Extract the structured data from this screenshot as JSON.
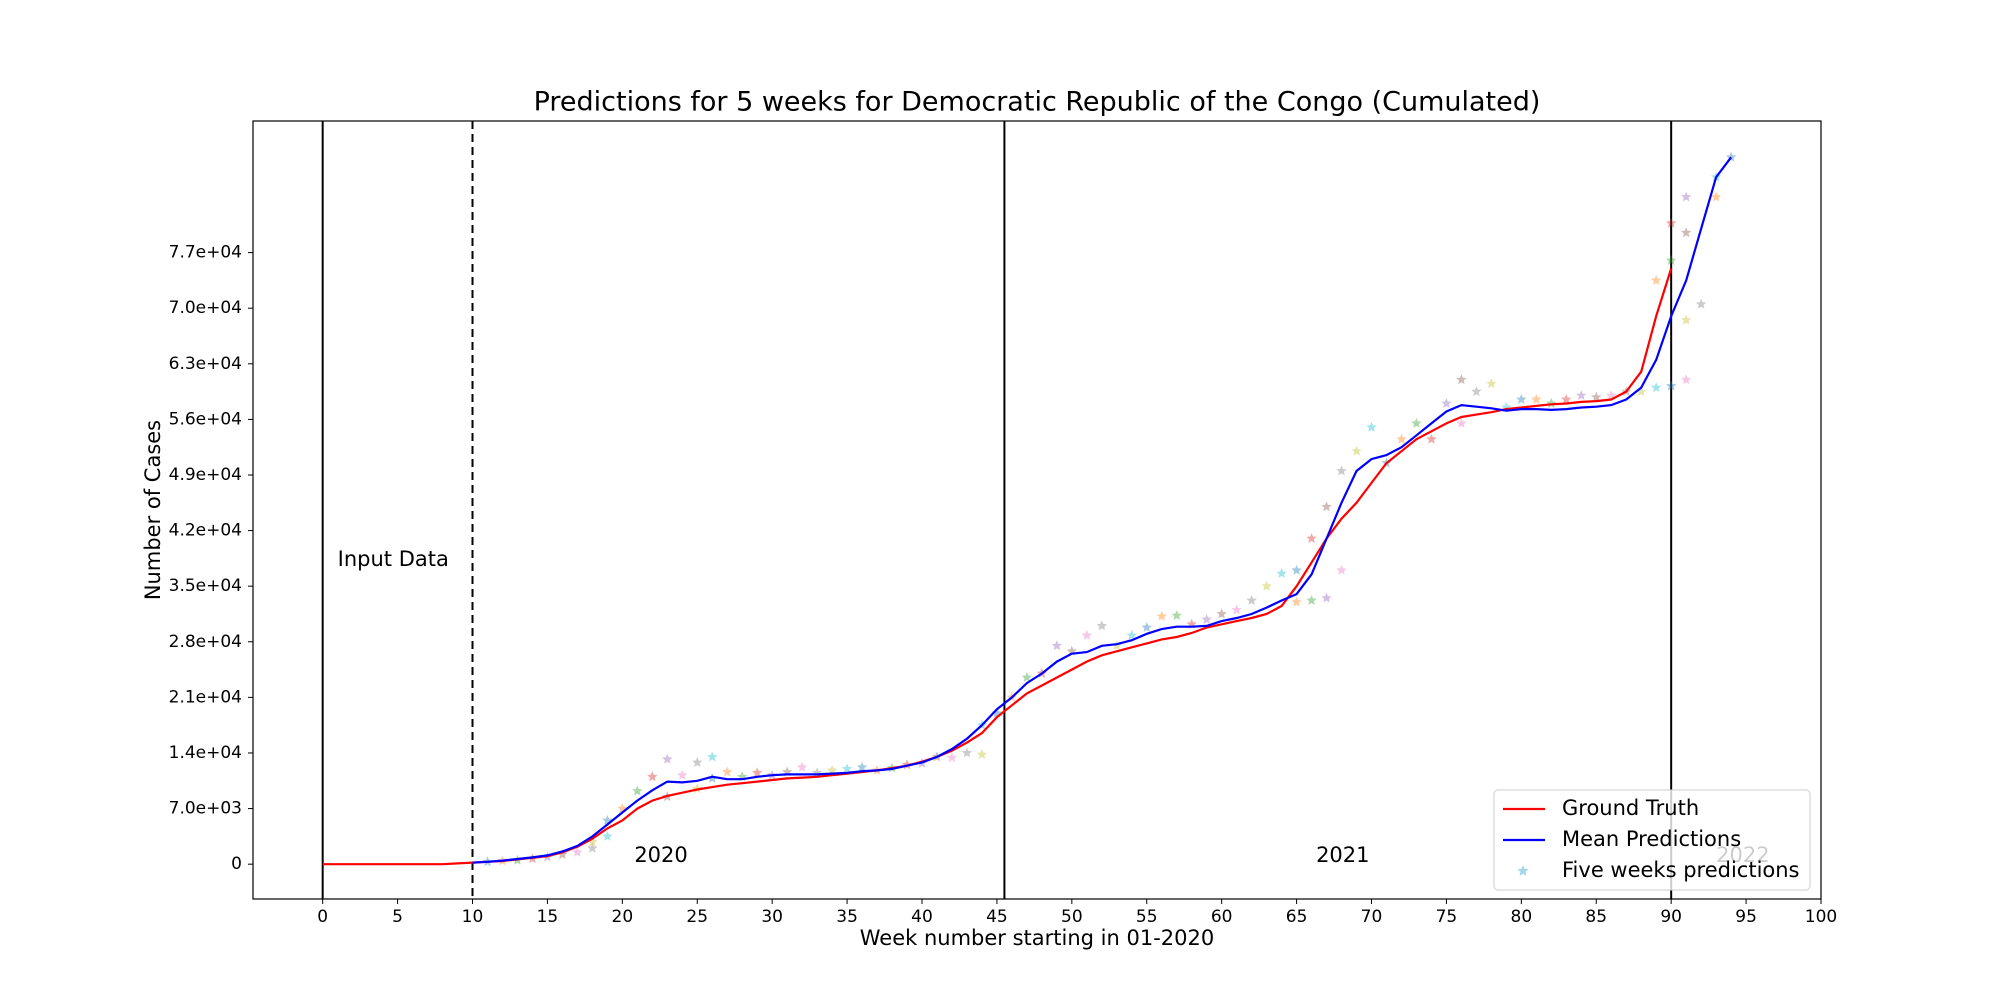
{
  "chart_data": {
    "type": "line",
    "title": "Predictions for 5 weeks for Democratic Republic of the Congo (Cumulated)",
    "x_label": "Week number starting in 01-2020",
    "y_label": "Number of Cases",
    "xlim": [
      -4.65,
      100
    ],
    "ylim": [
      -4386,
      93570
    ],
    "xticks": [
      0,
      5,
      10,
      15,
      20,
      25,
      30,
      35,
      40,
      45,
      50,
      55,
      60,
      65,
      70,
      75,
      80,
      85,
      90,
      95,
      100
    ],
    "yticks": [
      0,
      {
        "value": 7000,
        "label": "7.0e+03"
      },
      {
        "value": 14000,
        "label": "1.4e+04"
      },
      {
        "value": 21000,
        "label": "2.1e+04"
      },
      {
        "value": 28000,
        "label": "2.8e+04"
      },
      {
        "value": 35000,
        "label": "3.5e+04"
      },
      {
        "value": 42000,
        "label": "4.2e+04"
      },
      {
        "value": 49000,
        "label": "4.9e+04"
      },
      {
        "value": 56000,
        "label": "5.6e+04"
      },
      {
        "value": 63000,
        "label": "6.3e+04"
      },
      {
        "value": 70000,
        "label": "7.0e+04"
      },
      {
        "value": 77000,
        "label": "7.7e+04"
      }
    ],
    "legend": "lower right",
    "vlines": [
      {
        "x": 0,
        "style": "solid"
      },
      {
        "x": 10,
        "style": "dashed"
      },
      {
        "x": 45.5,
        "style": "solid"
      },
      {
        "x": 90,
        "style": "solid"
      }
    ],
    "annotations": [
      {
        "text": "Input Data",
        "x": 1,
        "y": 38300,
        "color": "#000000"
      },
      {
        "text": "2020",
        "x": 20.8,
        "y": 1000,
        "color": "#000000"
      },
      {
        "text": "2021",
        "x": 66.3,
        "y": 1000,
        "color": "#000000"
      },
      {
        "text": "2022",
        "x": 93,
        "y": 1000,
        "color": "#c8c8c8"
      }
    ],
    "series": [
      {
        "name": "Ground Truth",
        "color": "#ff0000",
        "kind": "line",
        "x": [
          0,
          1,
          2,
          3,
          4,
          5,
          6,
          7,
          8,
          9,
          10,
          11,
          12,
          13,
          14,
          15,
          16,
          17,
          18,
          19,
          20,
          21,
          22,
          23,
          24,
          25,
          26,
          27,
          28,
          29,
          30,
          31,
          32,
          33,
          34,
          35,
          36,
          37,
          38,
          39,
          40,
          41,
          42,
          43,
          44,
          45,
          46,
          47,
          48,
          49,
          50,
          51,
          52,
          53,
          54,
          55,
          56,
          57,
          58,
          59,
          60,
          61,
          62,
          63,
          64,
          65,
          66,
          67,
          68,
          69,
          70,
          71,
          72,
          73,
          74,
          75,
          76,
          77,
          78,
          79,
          80,
          81,
          82,
          83,
          84,
          85,
          86,
          87,
          88,
          89,
          90
        ],
        "values": [
          0,
          0,
          0,
          0,
          0,
          0,
          0,
          0,
          0,
          100,
          200,
          300,
          400,
          600,
          800,
          1000,
          1500,
          2200,
          3200,
          4500,
          5500,
          7000,
          8000,
          8600,
          9000,
          9400,
          9700,
          10000,
          10200,
          10400,
          10600,
          10800,
          10900,
          11000,
          11200,
          11400,
          11600,
          11800,
          12100,
          12400,
          12900,
          13500,
          14300,
          15300,
          16500,
          18500,
          20000,
          21500,
          22500,
          23500,
          24500,
          25500,
          26300,
          26800,
          27300,
          27800,
          28300,
          28600,
          29100,
          29800,
          30200,
          30600,
          31000,
          31500,
          32500,
          35000,
          38000,
          41000,
          43500,
          45500,
          48000,
          50500,
          52000,
          53500,
          54500,
          55500,
          56300,
          56600,
          56900,
          57300,
          57500,
          57700,
          57900,
          58000,
          58200,
          58300,
          58500,
          59500,
          62000,
          69000,
          75000
        ]
      },
      {
        "name": "Mean Predictions",
        "color": "#0000ff",
        "kind": "line",
        "x": [
          10,
          11,
          12,
          13,
          14,
          15,
          16,
          17,
          18,
          19,
          20,
          21,
          22,
          23,
          24,
          25,
          26,
          27,
          28,
          29,
          30,
          31,
          32,
          33,
          34,
          35,
          36,
          37,
          38,
          39,
          40,
          41,
          42,
          43,
          44,
          45,
          46,
          47,
          48,
          49,
          50,
          51,
          52,
          53,
          54,
          55,
          56,
          57,
          58,
          59,
          60,
          61,
          62,
          63,
          64,
          65,
          66,
          67,
          68,
          69,
          70,
          71,
          72,
          73,
          74,
          75,
          76,
          77,
          78,
          79,
          80,
          81,
          82,
          83,
          84,
          85,
          86,
          87,
          88,
          89,
          90,
          91,
          92,
          93,
          94
        ],
        "values": [
          200,
          300,
          450,
          650,
          850,
          1100,
          1600,
          2300,
          3500,
          5000,
          6500,
          8000,
          9300,
          10400,
          10300,
          10500,
          11000,
          10700,
          10700,
          11000,
          11200,
          11300,
          11300,
          11300,
          11400,
          11500,
          11700,
          11800,
          12000,
          12400,
          12800,
          13500,
          14500,
          15800,
          17500,
          19500,
          21000,
          22800,
          24000,
          25500,
          26500,
          26700,
          27500,
          27700,
          28200,
          29000,
          29600,
          29900,
          29900,
          30000,
          30600,
          31000,
          31500,
          32300,
          33200,
          34000,
          36500,
          41000,
          45500,
          49500,
          51000,
          51500,
          52500,
          54000,
          55500,
          57000,
          57800,
          57600,
          57400,
          57100,
          57300,
          57300,
          57200,
          57300,
          57500,
          57600,
          57800,
          58500,
          60000,
          63500,
          69000,
          73500,
          80000,
          86500,
          89000
        ]
      },
      {
        "name": "Five weeks predictions",
        "color": "#7fc6e0",
        "kind": "scatter",
        "palette": [
          "#1f77b4",
          "#ff7f0e",
          "#2ca02c",
          "#d62728",
          "#9467bd",
          "#8c564b",
          "#e377c2",
          "#7f7f7f",
          "#bcbd22",
          "#17becf"
        ],
        "x": [
          11,
          12,
          13,
          14,
          15,
          16,
          17,
          18,
          18,
          19,
          19,
          20,
          21,
          22,
          23,
          23,
          24,
          25,
          25,
          26,
          26,
          27,
          28,
          29,
          30,
          31,
          32,
          33,
          34,
          35,
          36,
          37,
          38,
          39,
          40,
          41,
          42,
          43,
          44,
          44,
          45,
          46,
          47,
          48,
          49,
          50,
          51,
          52,
          53,
          54,
          55,
          56,
          57,
          58,
          59,
          60,
          61,
          62,
          63,
          64,
          65,
          65,
          66,
          66,
          67,
          67,
          68,
          68,
          69,
          70,
          71,
          72,
          73,
          74,
          75,
          76,
          76,
          77,
          78,
          79,
          80,
          81,
          82,
          83,
          84,
          85,
          86,
          87,
          88,
          89,
          90,
          89,
          90,
          90,
          91,
          91,
          91,
          92,
          91,
          93,
          94,
          93
        ],
        "values": [
          300,
          400,
          500,
          700,
          900,
          1200,
          1500,
          2000,
          2800,
          3500,
          5500,
          7000,
          9200,
          11000,
          13200,
          8500,
          11200,
          12800,
          9500,
          13500,
          10800,
          11600,
          11000,
          11500,
          11200,
          11600,
          12200,
          11500,
          11800,
          12000,
          12200,
          11800,
          12100,
          12500,
          12700,
          13500,
          13400,
          14000,
          13800,
          17500,
          19000,
          21000,
          23500,
          24000,
          27500,
          26800,
          28800,
          30000,
          27500,
          28800,
          29800,
          31200,
          31300,
          30200,
          30800,
          31500,
          32000,
          33200,
          35000,
          36600,
          37000,
          33000,
          33200,
          41000,
          33500,
          45000,
          37000,
          49500,
          52000,
          55000,
          50500,
          53500,
          55500,
          53500,
          58000,
          61000,
          55500,
          59500,
          60500,
          57500,
          58500,
          58500,
          58000,
          58500,
          59000,
          58800,
          59000,
          59500,
          59500,
          60000,
          60200,
          73500,
          76000,
          80700,
          84000,
          79500,
          61000,
          70500,
          68500,
          86500,
          89000,
          84000
        ]
      }
    ]
  }
}
